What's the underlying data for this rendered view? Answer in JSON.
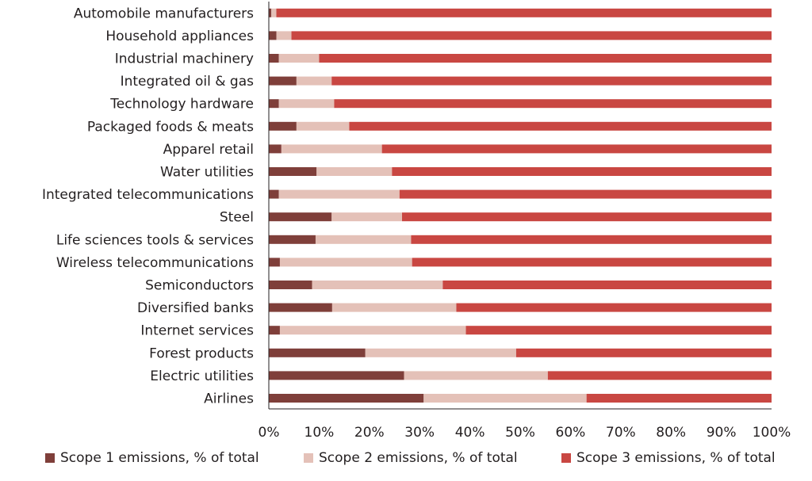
{
  "chart_data": {
    "type": "bar",
    "orientation": "horizontal",
    "stacked": true,
    "categories": [
      "Automobile manufacturers",
      "Household appliances",
      "Industrial machinery",
      "Integrated oil & gas",
      "Technology hardware",
      "Packaged foods & meats",
      "Apparel retail",
      "Water utilities",
      "Integrated telecommunications",
      "Steel",
      "Life sciences tools & services",
      "Wireless telecommunications",
      "Semiconductors",
      "Diversified banks",
      "Internet services",
      "Forest products",
      "Electric utilities",
      "Airlines"
    ],
    "series": [
      {
        "name": "Scope 1 emissions, % of total",
        "color": "#7f3f3a",
        "values": [
          0.5,
          1.5,
          2,
          5.5,
          2,
          5.5,
          2.5,
          9.5,
          2,
          12.5,
          9.3,
          2.2,
          8.6,
          12.6,
          2.2,
          19.2,
          26.9,
          30.8
        ]
      },
      {
        "name": "Scope 2 emissions, % of total",
        "color": "#e4c1b8",
        "values": [
          1,
          3,
          8,
          7,
          11,
          10.5,
          20,
          15,
          24,
          14,
          19,
          26.3,
          26,
          24.7,
          37,
          30,
          28.6,
          32.4
        ]
      },
      {
        "name": "Scope 3 emissions, % of total",
        "color": "#c94742",
        "values": [
          98.5,
          95.5,
          90,
          87.5,
          87,
          84,
          77.5,
          75.5,
          74,
          73.5,
          71.7,
          71.5,
          65.4,
          62.7,
          60.8,
          50.8,
          44.5,
          36.8
        ]
      }
    ],
    "x_ticks": [
      "0%",
      "10%",
      "20%",
      "30%",
      "40%",
      "50%",
      "60%",
      "70%",
      "80%",
      "90%",
      "100%"
    ],
    "xlim": [
      0,
      100
    ],
    "grid": false,
    "legend_position": "bottom"
  }
}
